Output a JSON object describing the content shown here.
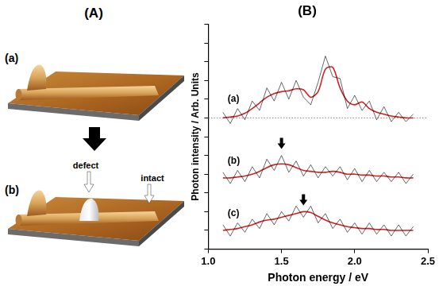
{
  "panel_a": {
    "label": "(A)",
    "images": [
      {
        "label": "(a)"
      },
      {
        "label": "(b)",
        "annotations": [
          "defect",
          "intact"
        ]
      }
    ]
  },
  "chart_data": {
    "type": "line",
    "title": "(B)",
    "x_label": "Photon energy / eV",
    "y_label": "Photon intensity / Arb. Units",
    "x": [
      1.1,
      1.15,
      1.2,
      1.25,
      1.3,
      1.35,
      1.4,
      1.45,
      1.5,
      1.55,
      1.6,
      1.65,
      1.7,
      1.75,
      1.8,
      1.85,
      1.9,
      1.95,
      2.0,
      2.05,
      2.1,
      2.15,
      2.2,
      2.25,
      2.3,
      2.35,
      2.4
    ],
    "series": [
      {
        "name": "(a)",
        "color": "#000000",
        "baseline": 7,
        "values": [
          7.3,
          6.7,
          7.5,
          6.9,
          7.9,
          7.4,
          8.6,
          7.9,
          8.9,
          8.0,
          9.0,
          8.1,
          7.7,
          8.9,
          10.3,
          9.2,
          9.1,
          7.5,
          8.2,
          7.4,
          7.9,
          6.9,
          7.6,
          6.8,
          7.3,
          6.8,
          7.2
        ],
        "fit": {
          "color": "#d42020",
          "values": [
            7.0,
            7.05,
            7.1,
            7.25,
            7.5,
            7.8,
            8.1,
            8.3,
            8.4,
            8.45,
            8.55,
            8.5,
            8.1,
            8.4,
            9.6,
            9.7,
            8.6,
            7.9,
            7.7,
            7.85,
            7.5,
            7.3,
            7.2,
            7.1,
            7.05,
            7.0,
            7.0
          ]
        }
      },
      {
        "name": "(b)",
        "color": "#000000",
        "arrow_x": 1.5,
        "values": [
          4.1,
          3.5,
          4.2,
          3.6,
          4.4,
          3.8,
          4.8,
          4.2,
          5.0,
          4.1,
          4.7,
          3.9,
          4.5,
          3.8,
          4.4,
          3.9,
          4.4,
          3.7,
          4.3,
          3.6,
          4.2,
          3.6,
          4.1,
          3.6,
          4.1,
          3.5,
          4.0
        ],
        "fit": {
          "color": "#d42020",
          "values": [
            3.8,
            3.8,
            3.85,
            3.9,
            4.0,
            4.15,
            4.35,
            4.5,
            4.55,
            4.5,
            4.35,
            4.2,
            4.15,
            4.1,
            4.1,
            4.15,
            4.1,
            4.0,
            4.0,
            3.95,
            3.95,
            3.9,
            3.9,
            3.85,
            3.85,
            3.8,
            3.8
          ]
        }
      },
      {
        "name": "(c)",
        "color": "#000000",
        "arrow_x": 1.65,
        "values": [
          1.3,
          0.7,
          1.4,
          0.9,
          1.6,
          1.1,
          1.9,
          1.3,
          2.0,
          1.5,
          2.3,
          1.7,
          2.3,
          1.4,
          1.9,
          1.1,
          1.6,
          0.9,
          1.4,
          0.8,
          1.4,
          0.8,
          1.3,
          0.7,
          1.3,
          0.7,
          1.2
        ],
        "fit": {
          "color": "#d42020",
          "values": [
            1.0,
            1.05,
            1.1,
            1.2,
            1.3,
            1.45,
            1.55,
            1.6,
            1.7,
            1.8,
            1.9,
            2.0,
            1.95,
            1.75,
            1.55,
            1.4,
            1.3,
            1.2,
            1.15,
            1.1,
            1.1,
            1.05,
            1.05,
            1.0,
            1.0,
            1.0,
            1.0
          ]
        }
      }
    ],
    "xlim": [
      1.0,
      2.5
    ],
    "xticks": [
      {
        "value": 1.0,
        "label": "1.0"
      },
      1.5,
      {
        "value": 2.0,
        "label": "2.0"
      },
      2.5
    ],
    "ylim": [
      0,
      12
    ],
    "yticks": [
      0,
      1,
      2,
      3,
      4,
      5,
      6,
      7,
      8,
      9,
      10,
      11,
      12
    ],
    "tick_labels": "x",
    "grid": false
  }
}
